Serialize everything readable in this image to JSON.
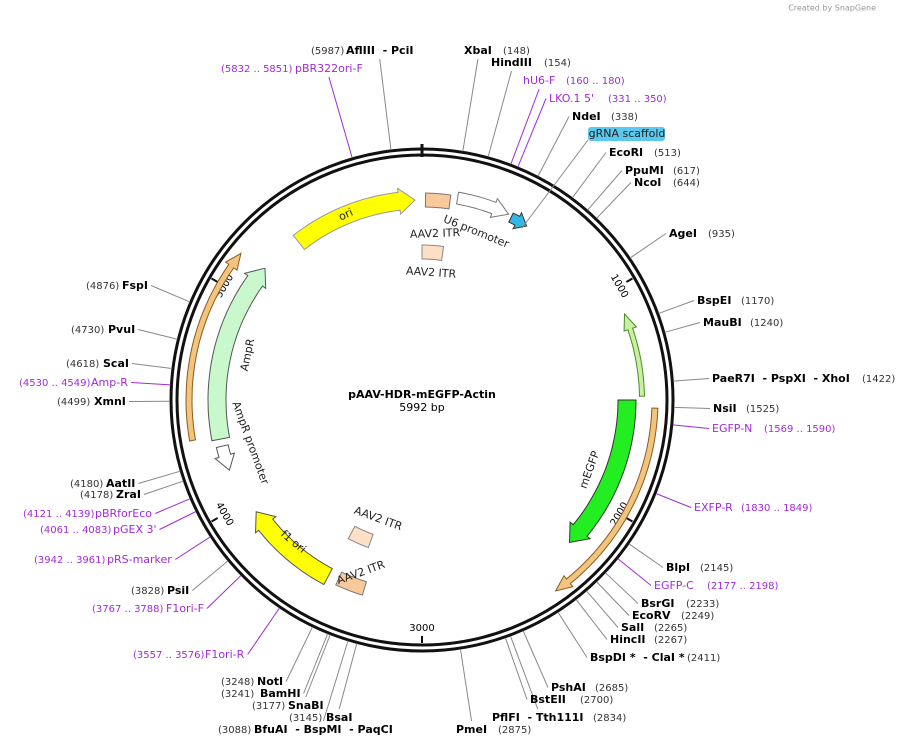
{
  "credit": "Created by SnapGene",
  "name": "pAAV-HDR-mEGFP-Actin",
  "length": "5992 bp",
  "ticks": [
    "1000",
    "2000",
    "3000",
    "4000",
    "5000"
  ],
  "features": [
    "ori",
    "U6 promoter",
    "AAV2 ITR",
    "AAV2 ITR",
    "gRNA scaffold",
    "AmpR",
    "AmpR promoter",
    "mEGFP",
    "f1 ori",
    "AAV2 ITR",
    "AAV2 ITR"
  ],
  "enzymes": [
    {
      "name": "AflIII  - PciI",
      "pos": "(5987)"
    },
    {
      "name": "XbaI",
      "pos": "(148)"
    },
    {
      "name": "HindIII",
      "pos": "(154)"
    },
    {
      "name": "NdeI",
      "pos": "(338)"
    },
    {
      "name": "EcoRI",
      "pos": "(513)"
    },
    {
      "name": "PpuMI",
      "pos": "(617)"
    },
    {
      "name": "NcoI",
      "pos": "(644)"
    },
    {
      "name": "AgeI",
      "pos": "(935)"
    },
    {
      "name": "BspEI",
      "pos": "(1170)"
    },
    {
      "name": "MauBI",
      "pos": "(1240)"
    },
    {
      "name": "PaeR7I  - PspXI  - XhoI",
      "pos": "(1422)"
    },
    {
      "name": "NsiI",
      "pos": "(1525)"
    },
    {
      "name": "BlpI",
      "pos": "(2145)"
    },
    {
      "name": "BsrGI",
      "pos": "(2233)"
    },
    {
      "name": "EcoRV",
      "pos": "(2249)"
    },
    {
      "name": "SalI",
      "pos": "(2265)"
    },
    {
      "name": "HincII",
      "pos": "(2267)"
    },
    {
      "name": "BspDI *  - ClaI *",
      "pos": "(2411)"
    },
    {
      "name": "PshAI",
      "pos": "(2685)"
    },
    {
      "name": "BstEII",
      "pos": "(2700)"
    },
    {
      "name": "PflFI  - Tth111I",
      "pos": "(2834)"
    },
    {
      "name": "PmeI",
      "pos": "(2875)"
    },
    {
      "name": "NotI",
      "pos": "(3248)"
    },
    {
      "name": "BamHI",
      "pos": "(3241)"
    },
    {
      "name": "SnaBI",
      "pos": "(3177)"
    },
    {
      "name": "BsaI",
      "pos": "(3145)"
    },
    {
      "name": "BfuAI  - BspMI  - PaqCI",
      "pos": "(3088)"
    },
    {
      "name": "PsiI",
      "pos": "(3828)"
    },
    {
      "name": "ZraI",
      "pos": "(4178)"
    },
    {
      "name": "AatII",
      "pos": "(4180)"
    },
    {
      "name": "XmnI",
      "pos": "(4499)"
    },
    {
      "name": "ScaI",
      "pos": "(4618)"
    },
    {
      "name": "PvuI",
      "pos": "(4730)"
    },
    {
      "name": "FspI",
      "pos": "(4876)"
    }
  ],
  "primers": [
    {
      "name": "pBR322ori-F",
      "range": "(5832 .. 5851)"
    },
    {
      "name": "hU6-F",
      "range": "(160 .. 180)"
    },
    {
      "name": "LKO.1 5'",
      "range": "(331 .. 350)"
    },
    {
      "name": "EGFP-N",
      "range": "(1569 .. 1590)"
    },
    {
      "name": "EXFP-R",
      "range": "(1830 .. 1849)"
    },
    {
      "name": "EGFP-C",
      "range": "(2177 .. 2198)"
    },
    {
      "name": "F1ori-R",
      "range": "(3557 .. 3576)"
    },
    {
      "name": "F1ori-F",
      "range": "(3767 .. 3788)"
    },
    {
      "name": "pRS-marker",
      "range": "(3942 .. 3961)"
    },
    {
      "name": "pGEX 3'",
      "range": "(4061 .. 4083)"
    },
    {
      "name": "pBRforEco",
      "range": "(4121 .. 4139)"
    },
    {
      "name": "Amp-R",
      "range": "(4530 .. 4549)"
    }
  ]
}
